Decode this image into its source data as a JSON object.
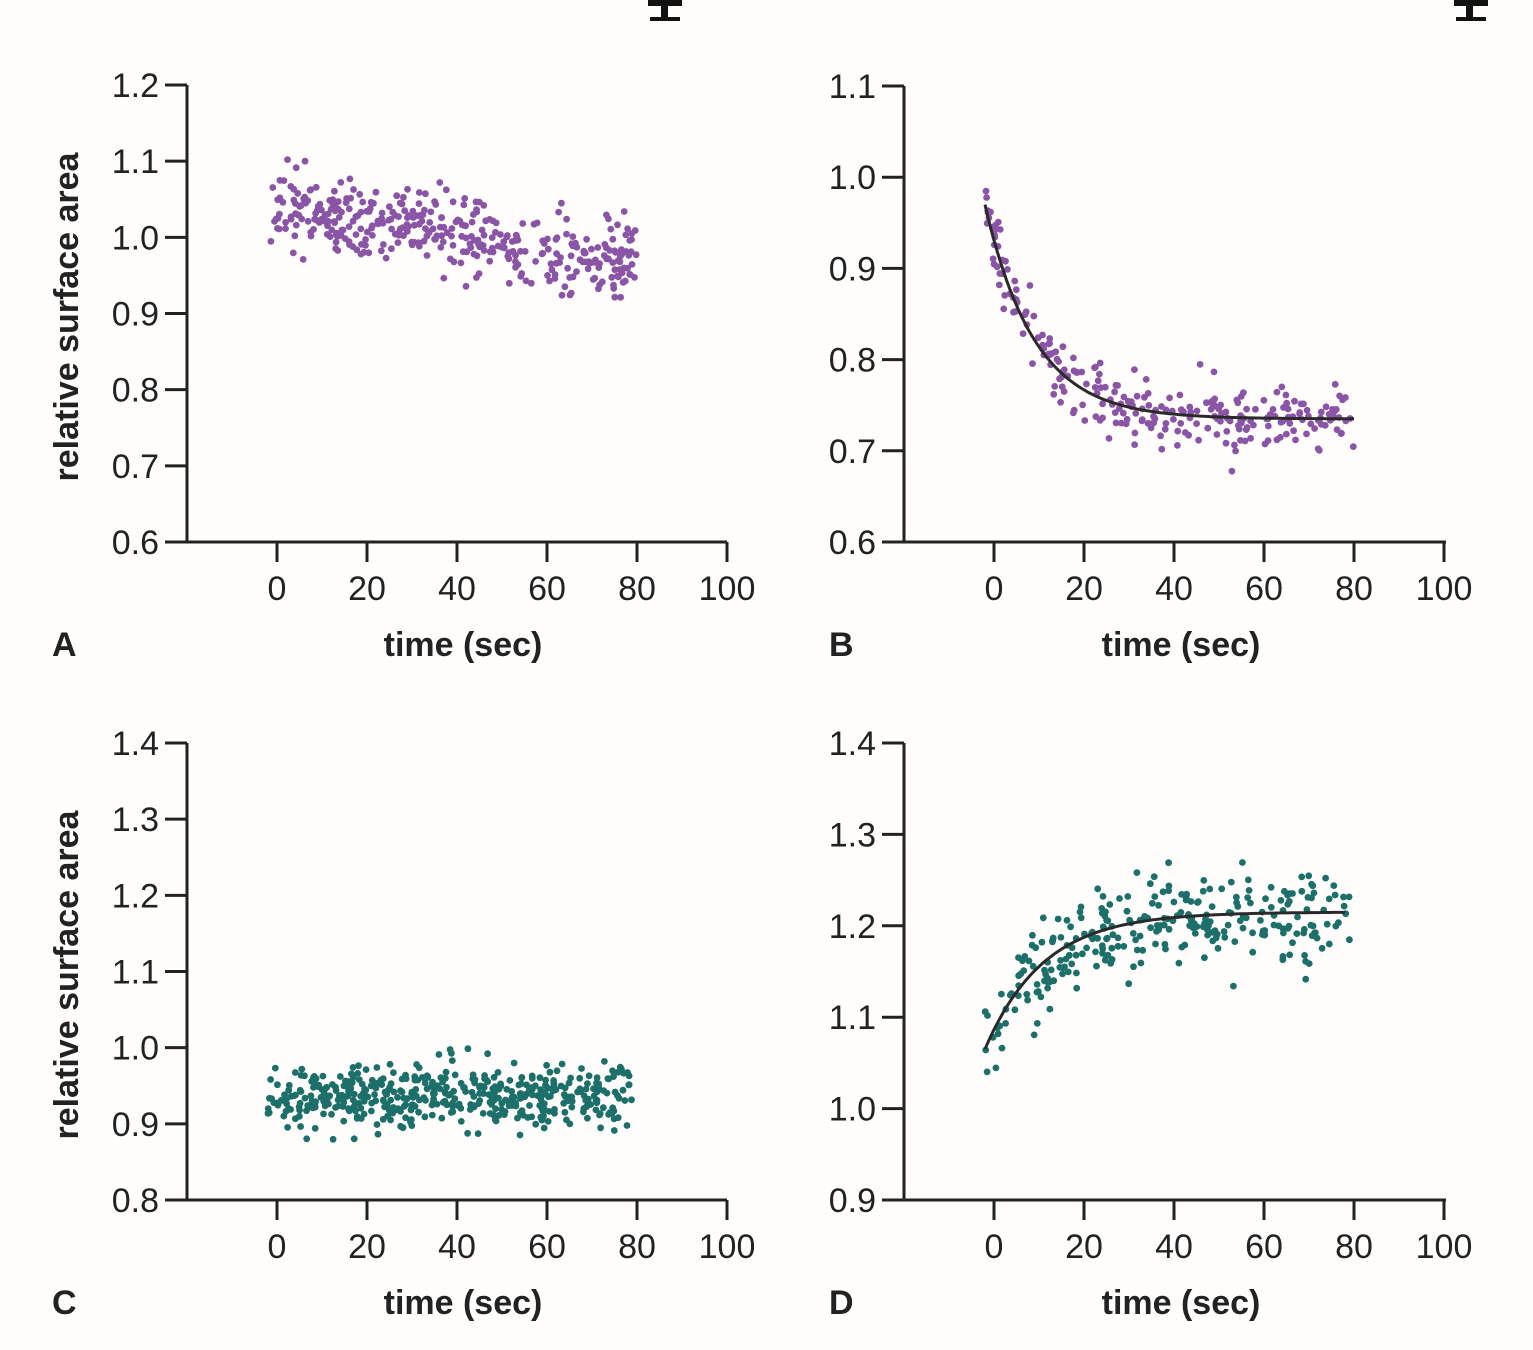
{
  "figure": {
    "colors": {
      "purple": "#8a55a6",
      "teal": "#1d6f6a",
      "axis": "#222222",
      "curve": "#2a2a2a"
    }
  },
  "chart_data": [
    {
      "panel": "A",
      "type": "scatter",
      "xlabel": "time (sec)",
      "ylabel": "relative surface area",
      "xlim": [
        -20,
        100
      ],
      "ylim": [
        0.6,
        1.2
      ],
      "xticks": [
        "0",
        "20",
        "40",
        "60",
        "80",
        "100"
      ],
      "yticks": [
        "0.6",
        "0.7",
        "0.8",
        "0.9",
        "1.0",
        "1.1",
        "1.2"
      ],
      "color": "#8a55a6",
      "trend": {
        "kind": "linear",
        "start": 1.04,
        "end": 0.965,
        "spread": 0.045
      },
      "n_points": 400,
      "x_range": [
        -2,
        80
      ],
      "fit": null
    },
    {
      "panel": "B",
      "type": "scatter",
      "xlabel": "time (sec)",
      "ylabel": "",
      "xlim": [
        -20,
        100
      ],
      "ylim": [
        0.6,
        1.1
      ],
      "xticks": [
        "0",
        "20",
        "40",
        "60",
        "80",
        "100"
      ],
      "yticks": [
        "0.6",
        "0.7",
        "0.8",
        "0.9",
        "1.0",
        "1.1"
      ],
      "color": "#8a55a6",
      "trend": {
        "kind": "exp",
        "a": 0.735,
        "b": 0.235,
        "tau": 11,
        "spread": 0.032
      },
      "n_points": 270,
      "x_range": [
        -2,
        80
      ],
      "fit": {
        "kind": "exp",
        "a": 0.735,
        "b": 0.235,
        "tau": 11,
        "x_range": [
          -2,
          80
        ]
      }
    },
    {
      "panel": "C",
      "type": "scatter",
      "xlabel": "time (sec)",
      "ylabel": "relative surface area",
      "xlim": [
        -20,
        100
      ],
      "ylim": [
        0.8,
        1.4
      ],
      "xticks": [
        "0",
        "20",
        "40",
        "60",
        "80",
        "100"
      ],
      "yticks": [
        "0.8",
        "0.9",
        "1.0",
        "1.1",
        "1.2",
        "1.3",
        "1.4"
      ],
      "color": "#1d6f6a",
      "trend": {
        "kind": "linear",
        "start": 0.935,
        "end": 0.935,
        "spread": 0.04
      },
      "n_points": 480,
      "x_range": [
        -2,
        79
      ],
      "fit": null
    },
    {
      "panel": "D",
      "type": "scatter",
      "xlabel": "time (sec)",
      "ylabel": "",
      "xlim": [
        -20,
        100
      ],
      "ylim": [
        0.9,
        1.4
      ],
      "xticks": [
        "0",
        "20",
        "40",
        "60",
        "80",
        "100"
      ],
      "yticks": [
        "0.9",
        "1.0",
        "1.1",
        "1.2",
        "1.3",
        "1.4"
      ],
      "color": "#1d6f6a",
      "trend": {
        "kind": "exp",
        "a": 1.215,
        "b": -0.15,
        "tau": 13,
        "spread": 0.045
      },
      "n_points": 290,
      "x_range": [
        -2,
        79
      ],
      "fit": {
        "kind": "exp",
        "a": 1.215,
        "b": -0.15,
        "tau": 13,
        "x_range": [
          -2,
          78
        ]
      }
    }
  ]
}
